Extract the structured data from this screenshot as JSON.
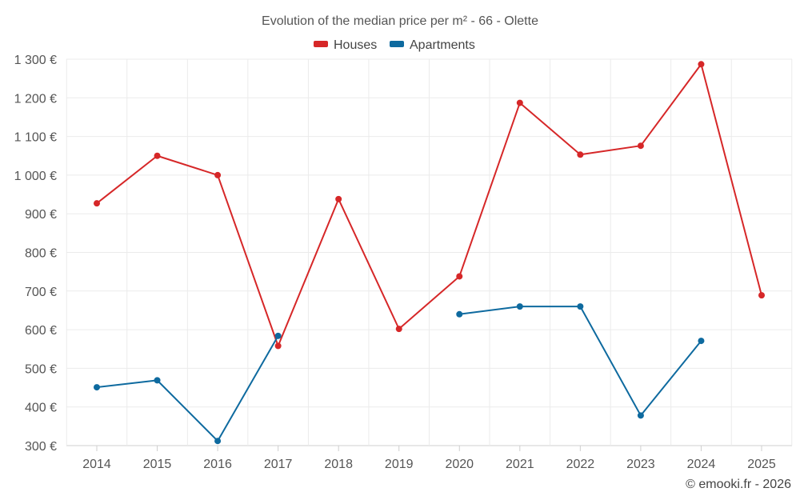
{
  "chart_data": {
    "type": "line",
    "title": "Evolution of the median price per m² - 66 - Olette",
    "xlabel": "",
    "ylabel": "",
    "categories": [
      "2014",
      "2015",
      "2016",
      "2017",
      "2018",
      "2019",
      "2020",
      "2021",
      "2022",
      "2023",
      "2024",
      "2025"
    ],
    "ylim": [
      300,
      1300
    ],
    "yticks": [
      300,
      400,
      500,
      600,
      700,
      800,
      900,
      1000,
      1100,
      1200,
      1300
    ],
    "ytick_labels": [
      "300 €",
      "400 €",
      "500 €",
      "600 €",
      "700 €",
      "800 €",
      "900 €",
      "1 000 €",
      "1 100 €",
      "1 200 €",
      "1 300 €"
    ],
    "grid": true,
    "legend_position": "top-center",
    "series": [
      {
        "name": "Houses",
        "color": "#d62728",
        "values": [
          927,
          1050,
          1000,
          558,
          938,
          602,
          738,
          1187,
          1053,
          1076,
          1287,
          689
        ]
      },
      {
        "name": "Apartments",
        "color": "#0e6a9f",
        "values": [
          451,
          469,
          312,
          584,
          null,
          null,
          640,
          660,
          660,
          378,
          571,
          null
        ]
      }
    ]
  },
  "credit": "© emooki.fr - 2026"
}
